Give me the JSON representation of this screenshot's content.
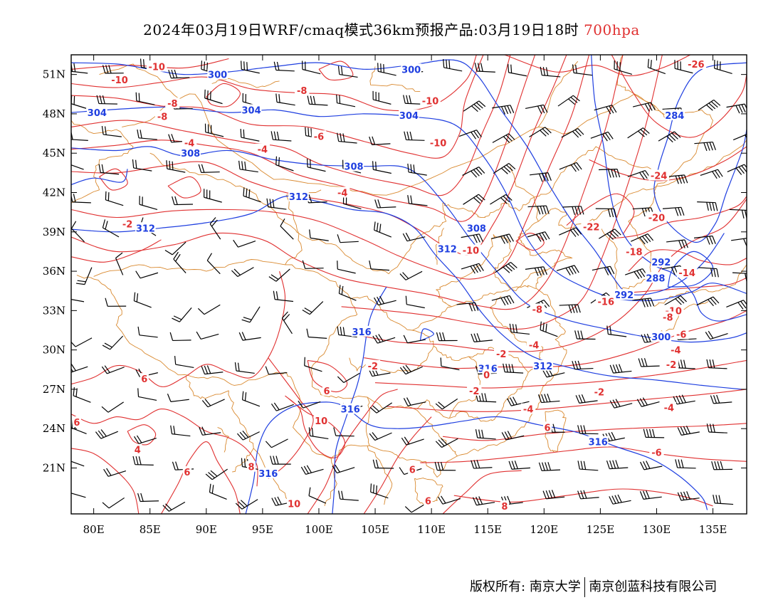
{
  "title": {
    "main": "2024年03月19日WRF/cmaq模式36km预报产品:03月19日18时",
    "level": "700hpa",
    "level_color": "#e03030"
  },
  "map": {
    "lon_range": [
      78,
      138
    ],
    "lat_range": [
      17.5,
      52.5
    ],
    "lon_ticks": [
      {
        "v": 80,
        "t": "80E"
      },
      {
        "v": 85,
        "t": "85E"
      },
      {
        "v": 90,
        "t": "90E"
      },
      {
        "v": 95,
        "t": "95E"
      },
      {
        "v": 100,
        "t": "100E"
      },
      {
        "v": 105,
        "t": "105E"
      },
      {
        "v": 110,
        "t": "110E"
      },
      {
        "v": 115,
        "t": "115E"
      },
      {
        "v": 120,
        "t": "120E"
      },
      {
        "v": 125,
        "t": "125E"
      },
      {
        "v": 130,
        "t": "130E"
      },
      {
        "v": 135,
        "t": "135E"
      }
    ],
    "lat_ticks": [
      {
        "v": 51,
        "t": "51N"
      },
      {
        "v": 48,
        "t": "48N"
      },
      {
        "v": 45,
        "t": "45N"
      },
      {
        "v": 42,
        "t": "42N"
      },
      {
        "v": 39,
        "t": "39N"
      },
      {
        "v": 36,
        "t": "36N"
      },
      {
        "v": 33,
        "t": "33N"
      },
      {
        "v": 30,
        "t": "30N"
      },
      {
        "v": 27,
        "t": "27N"
      },
      {
        "v": 24,
        "t": "24N"
      },
      {
        "v": 21,
        "t": "21N"
      }
    ],
    "colors": {
      "height": "#1f3fe0",
      "temperature": "#e03030",
      "boundary": "#d9892f",
      "wind": "#000000"
    },
    "height_labels": [
      {
        "t": "300",
        "lon": 91.0,
        "lat": 51.0
      },
      {
        "t": "300",
        "lon": 108.2,
        "lat": 51.4
      },
      {
        "t": "304",
        "lon": 80.3,
        "lat": 48.1
      },
      {
        "t": "304",
        "lon": 94.0,
        "lat": 48.3
      },
      {
        "t": "304",
        "lon": 108.0,
        "lat": 47.9
      },
      {
        "t": "284",
        "lon": 131.6,
        "lat": 47.9
      },
      {
        "t": "308",
        "lon": 88.6,
        "lat": 45.0
      },
      {
        "t": "308",
        "lon": 103.1,
        "lat": 44.0
      },
      {
        "t": "312",
        "lon": 98.2,
        "lat": 41.7
      },
      {
        "t": "312",
        "lon": 84.6,
        "lat": 39.3
      },
      {
        "t": "308",
        "lon": 114.0,
        "lat": 39.3
      },
      {
        "t": "312",
        "lon": 111.4,
        "lat": 37.7
      },
      {
        "t": "292",
        "lon": 130.4,
        "lat": 36.7
      },
      {
        "t": "288",
        "lon": 129.9,
        "lat": 35.5
      },
      {
        "t": "292",
        "lon": 127.1,
        "lat": 34.2
      },
      {
        "t": "316",
        "lon": 103.8,
        "lat": 31.4
      },
      {
        "t": "300",
        "lon": 130.4,
        "lat": 31.0
      },
      {
        "t": "316",
        "lon": 115.0,
        "lat": 28.6
      },
      {
        "t": "312",
        "lon": 119.9,
        "lat": 28.8
      },
      {
        "t": "316",
        "lon": 102.8,
        "lat": 25.5
      },
      {
        "t": "316",
        "lon": 124.8,
        "lat": 23.0
      },
      {
        "t": "316",
        "lon": 95.5,
        "lat": 20.6
      }
    ],
    "temp_labels": [
      {
        "t": "-10",
        "lon": 85.6,
        "lat": 51.6
      },
      {
        "t": "-10",
        "lon": 82.3,
        "lat": 50.6
      },
      {
        "t": "-8",
        "lon": 98.5,
        "lat": 49.8
      },
      {
        "t": "-8",
        "lon": 87.0,
        "lat": 48.8
      },
      {
        "t": "-10",
        "lon": 109.9,
        "lat": 49.0
      },
      {
        "t": "-8",
        "lon": 86.1,
        "lat": 47.8
      },
      {
        "t": "-6",
        "lon": 100.0,
        "lat": 46.3
      },
      {
        "t": "-10",
        "lon": 110.6,
        "lat": 45.8
      },
      {
        "t": "-4",
        "lon": 88.5,
        "lat": 45.8
      },
      {
        "t": "-4",
        "lon": 95.0,
        "lat": 45.3
      },
      {
        "t": "-26",
        "lon": 133.5,
        "lat": 51.8
      },
      {
        "t": "-24",
        "lon": 130.2,
        "lat": 43.3
      },
      {
        "t": "-4",
        "lon": 102.1,
        "lat": 42.0
      },
      {
        "t": "-20",
        "lon": 130.0,
        "lat": 40.1
      },
      {
        "t": "-22",
        "lon": 124.2,
        "lat": 39.4
      },
      {
        "t": "-2",
        "lon": 83.0,
        "lat": 39.6
      },
      {
        "t": "-18",
        "lon": 128.0,
        "lat": 37.5
      },
      {
        "t": "-10",
        "lon": 113.5,
        "lat": 37.6
      },
      {
        "t": "-14",
        "lon": 132.7,
        "lat": 35.9
      },
      {
        "t": "-16",
        "lon": 125.5,
        "lat": 33.7
      },
      {
        "t": "-10",
        "lon": 131.5,
        "lat": 33.0
      },
      {
        "t": "-8",
        "lon": 131.0,
        "lat": 32.5
      },
      {
        "t": "-8",
        "lon": 119.4,
        "lat": 33.1
      },
      {
        "t": "-6",
        "lon": 132.2,
        "lat": 31.2
      },
      {
        "t": "-4",
        "lon": 119.1,
        "lat": 30.4
      },
      {
        "t": "-4",
        "lon": 131.7,
        "lat": 30.0
      },
      {
        "t": "-2",
        "lon": 116.2,
        "lat": 29.7
      },
      {
        "t": "-2",
        "lon": 131.3,
        "lat": 28.9
      },
      {
        "t": "-2",
        "lon": 104.8,
        "lat": 28.8
      },
      {
        "t": "0",
        "lon": 114.9,
        "lat": 28.1
      },
      {
        "t": "-2",
        "lon": 113.8,
        "lat": 26.9
      },
      {
        "t": "-2",
        "lon": 124.9,
        "lat": 26.8
      },
      {
        "t": "-4",
        "lon": 118.6,
        "lat": 25.5
      },
      {
        "t": "-4",
        "lon": 131.1,
        "lat": 25.6
      },
      {
        "t": "6",
        "lon": 100.7,
        "lat": 26.9
      },
      {
        "t": "6",
        "lon": 84.5,
        "lat": 27.8
      },
      {
        "t": "10",
        "lon": 100.2,
        "lat": 24.6
      },
      {
        "t": "6",
        "lon": 78.5,
        "lat": 24.5
      },
      {
        "t": "4",
        "lon": 83.9,
        "lat": 22.4
      },
      {
        "t": "6",
        "lon": 88.3,
        "lat": 20.7
      },
      {
        "t": "8",
        "lon": 94.0,
        "lat": 21.1
      },
      {
        "t": "6",
        "lon": 108.3,
        "lat": 20.9
      },
      {
        "t": "6",
        "lon": 120.3,
        "lat": 24.1
      },
      {
        "t": "-6",
        "lon": 130.0,
        "lat": 22.2
      },
      {
        "t": "10",
        "lon": 97.8,
        "lat": 18.3
      },
      {
        "t": "8",
        "lon": 116.5,
        "lat": 18.1
      },
      {
        "t": "6",
        "lon": 109.7,
        "lat": 18.5
      }
    ]
  },
  "footer": {
    "copyright": "版权所有: 南京大学",
    "company": "南京创蓝科技有限公司"
  }
}
